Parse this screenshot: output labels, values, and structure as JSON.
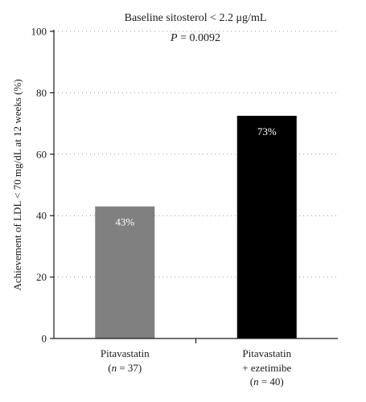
{
  "chart_data": {
    "type": "bar",
    "title": "Baseline sitosterol < 2.2 μg/mL",
    "annotation": {
      "prefix": "P",
      "text": " = 0.0092"
    },
    "ylabel": "Achievement of LDL < 70 mg/dL at 12 weeks (%)",
    "xlabel": "",
    "ylim": [
      0,
      100
    ],
    "yticks": [
      0,
      20,
      40,
      60,
      80,
      100
    ],
    "grid": true,
    "bars": [
      {
        "label_line1": "Pitavastatin",
        "label_line2": {
          "open": "(",
          "italic": "n",
          "rest": " = 37)"
        },
        "label_line3": null,
        "value": 43,
        "data_label": "43%",
        "color": "#808080"
      },
      {
        "label_line1": "Pitavastatin",
        "label_line2": {
          "open": "",
          "italic": "",
          "rest": "+ ezetimibe"
        },
        "label_line3": {
          "open": "(",
          "italic": "n",
          "rest": " = 40)"
        },
        "value": 72.5,
        "data_label": "73%",
        "color": "#000000"
      }
    ]
  }
}
